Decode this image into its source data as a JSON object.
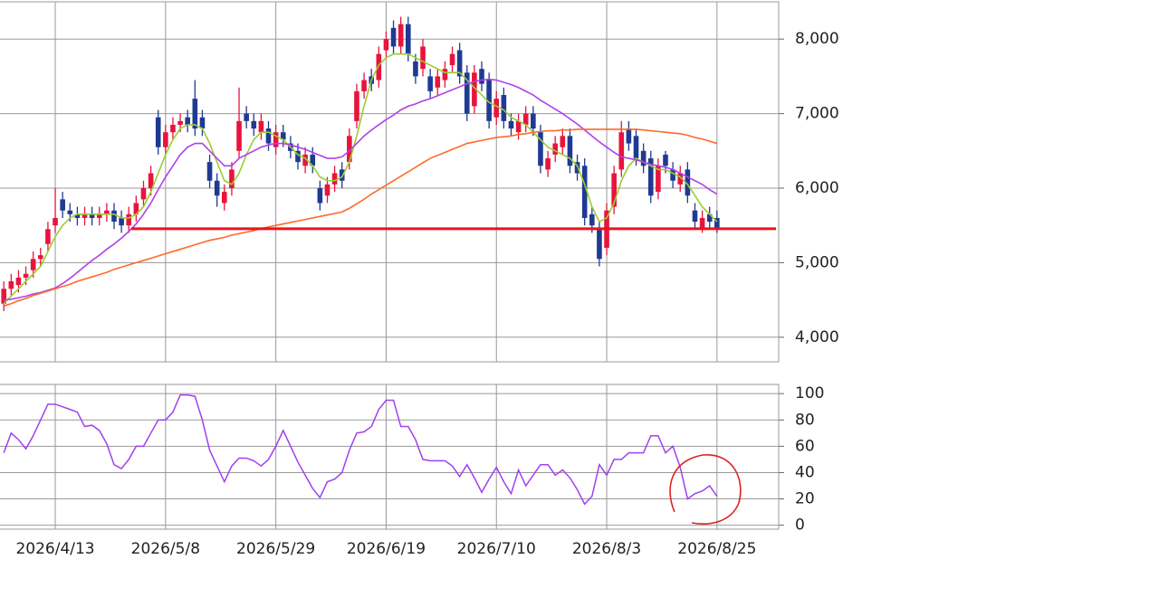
{
  "chart_data": [
    {
      "type": "candlestick",
      "ylim": [
        3670,
        8500
      ],
      "yticks": [
        {
          "value": 4000,
          "label": "4,000"
        },
        {
          "value": 5000,
          "label": "5,000"
        },
        {
          "value": 6000,
          "label": "6,000"
        },
        {
          "value": 7000,
          "label": "7,000"
        },
        {
          "value": 8000,
          "label": "8,000"
        }
      ],
      "grid": true,
      "up_color": "#e8143c",
      "down_color": "#1f3a93",
      "open": [
        4450,
        4650,
        4700,
        4800,
        4900,
        5050,
        5250,
        5500,
        5850,
        5700,
        5650,
        5600,
        5650,
        5600,
        5650,
        5700,
        5600,
        5500,
        5650,
        5850,
        6000,
        6950,
        6550,
        6750,
        6850,
        6950,
        7200,
        6950,
        6350,
        6100,
        5800,
        6000,
        6500,
        7000,
        6900,
        6750,
        6800,
        6550,
        6750,
        6600,
        6500,
        6300,
        6450,
        6000,
        5900,
        6050,
        6250,
        6350,
        6900,
        7300,
        7500,
        7450,
        7850,
        8150,
        7900,
        8200,
        7700,
        7600,
        7500,
        7350,
        7450,
        7650,
        7850,
        7550,
        7100,
        7600,
        7450,
        6950,
        7250,
        6900,
        6750,
        6850,
        7000,
        6750,
        6250,
        6450,
        6550,
        6700,
        6350,
        6300,
        5650,
        5450,
        5200,
        5750,
        6250,
        6800,
        6700,
        6500,
        6400,
        5950,
        6450,
        6250,
        6050,
        6250,
        5700,
        5450,
        5650,
        5600
      ],
      "high": [
        4750,
        4850,
        4900,
        4950,
        5150,
        5200,
        5550,
        6000,
        5950,
        5800,
        5750,
        5750,
        5750,
        5750,
        5800,
        5800,
        5700,
        5750,
        5900,
        6100,
        6300,
        7050,
        6850,
        6950,
        7000,
        7050,
        7450,
        7050,
        6450,
        6200,
        6050,
        6350,
        7350,
        7100,
        7000,
        7000,
        6900,
        6850,
        6850,
        6700,
        6600,
        6550,
        6550,
        6100,
        6150,
        6300,
        6350,
        6800,
        7400,
        7550,
        7600,
        7900,
        8100,
        8250,
        8300,
        8300,
        7800,
        8000,
        7600,
        7600,
        7700,
        7900,
        7950,
        7650,
        7650,
        7700,
        7550,
        7300,
        7350,
        7000,
        7000,
        7100,
        7100,
        6850,
        6500,
        6700,
        6800,
        6800,
        6450,
        6400,
        5750,
        5550,
        5800,
        6300,
        6900,
        6900,
        6800,
        6600,
        6500,
        6400,
        6500,
        6350,
        6300,
        6350,
        5800,
        5700,
        5750,
        5700
      ],
      "low": [
        4350,
        4550,
        4600,
        4700,
        4800,
        4950,
        5150,
        5400,
        5600,
        5550,
        5500,
        5500,
        5500,
        5500,
        5550,
        5450,
        5400,
        5400,
        5550,
        5750,
        5900,
        6450,
        6450,
        6650,
        6750,
        6750,
        6700,
        6700,
        6000,
        5750,
        5700,
        5900,
        6400,
        6800,
        6700,
        6650,
        6500,
        6450,
        6550,
        6400,
        6250,
        6200,
        6200,
        5700,
        5800,
        5950,
        6000,
        6250,
        6800,
        7200,
        7300,
        7350,
        7750,
        7800,
        7800,
        7700,
        7400,
        7500,
        7200,
        7250,
        7350,
        7550,
        7400,
        6900,
        7000,
        7300,
        6800,
        6850,
        6800,
        6700,
        6650,
        6750,
        6700,
        6200,
        6150,
        6350,
        6450,
        6200,
        6100,
        5500,
        5400,
        4950,
        5100,
        5650,
        6150,
        6500,
        6300,
        6200,
        5800,
        5850,
        6200,
        6000,
        5950,
        5800,
        5450,
        5400,
        5450,
        5400
      ],
      "close": [
        4650,
        4750,
        4800,
        4850,
        5050,
        5100,
        5450,
        5600,
        5700,
        5650,
        5600,
        5650,
        5600,
        5650,
        5700,
        5550,
        5500,
        5650,
        5800,
        6000,
        6200,
        6550,
        6750,
        6850,
        6900,
        6850,
        6800,
        6800,
        6100,
        5900,
        5950,
        6250,
        6900,
        6900,
        6800,
        6900,
        6600,
        6750,
        6650,
        6500,
        6350,
        6450,
        6300,
        5800,
        6050,
        6200,
        6100,
        6700,
        7300,
        7450,
        7400,
        7800,
        8000,
        7900,
        8200,
        7800,
        7500,
        7900,
        7300,
        7500,
        7600,
        7800,
        7500,
        7000,
        7550,
        7400,
        6900,
        7200,
        6900,
        6800,
        6900,
        7000,
        6800,
        6300,
        6400,
        6600,
        6700,
        6300,
        6200,
        5600,
        5500,
        5050,
        5700,
        6200,
        6750,
        6600,
        6400,
        6300,
        5900,
        6300,
        6300,
        6100,
        6200,
        5900,
        5550,
        5600,
        5550,
        5450
      ],
      "series": [
        {
          "color": "#9acd32",
          "values": [
            4450,
            4550,
            4650,
            4750,
            4850,
            4950,
            5150,
            5350,
            5500,
            5600,
            5650,
            5650,
            5650,
            5650,
            5650,
            5650,
            5600,
            5600,
            5650,
            5750,
            5950,
            6200,
            6450,
            6650,
            6800,
            6850,
            6850,
            6800,
            6600,
            6350,
            6100,
            6050,
            6200,
            6450,
            6650,
            6750,
            6750,
            6700,
            6650,
            6550,
            6450,
            6400,
            6300,
            6150,
            6100,
            6100,
            6150,
            6350,
            6700,
            7100,
            7450,
            7650,
            7750,
            7800,
            7800,
            7800,
            7750,
            7700,
            7650,
            7600,
            7550,
            7550,
            7550,
            7450,
            7350,
            7250,
            7150,
            7100,
            7050,
            6950,
            6900,
            6850,
            6750,
            6650,
            6550,
            6500,
            6450,
            6400,
            6300,
            6050,
            5750,
            5550,
            5600,
            5800,
            6100,
            6300,
            6400,
            6350,
            6300,
            6250,
            6250,
            6200,
            6150,
            6050,
            5900,
            5750,
            5650,
            5550
          ]
        },
        {
          "color": "#b040e8",
          "values": [
            4500,
            4510,
            4530,
            4550,
            4580,
            4600,
            4630,
            4660,
            4720,
            4790,
            4870,
            4950,
            5030,
            5100,
            5180,
            5250,
            5330,
            5420,
            5520,
            5650,
            5800,
            5980,
            6150,
            6300,
            6450,
            6550,
            6600,
            6600,
            6500,
            6400,
            6300,
            6300,
            6400,
            6450,
            6500,
            6550,
            6580,
            6600,
            6600,
            6580,
            6550,
            6520,
            6480,
            6440,
            6400,
            6400,
            6420,
            6500,
            6600,
            6700,
            6780,
            6850,
            6920,
            6980,
            7050,
            7100,
            7130,
            7170,
            7200,
            7240,
            7280,
            7320,
            7360,
            7400,
            7430,
            7450,
            7460,
            7450,
            7420,
            7390,
            7350,
            7300,
            7250,
            7180,
            7120,
            7060,
            7000,
            6930,
            6860,
            6780,
            6700,
            6620,
            6550,
            6480,
            6420,
            6400,
            6380,
            6350,
            6320,
            6300,
            6280,
            6250,
            6200,
            6150,
            6100,
            6050,
            5980,
            5920
          ]
        },
        {
          "color": "#ff6a2a",
          "values": [
            4420,
            4450,
            4490,
            4520,
            4560,
            4590,
            4620,
            4650,
            4680,
            4710,
            4750,
            4780,
            4810,
            4840,
            4870,
            4910,
            4940,
            4970,
            5000,
            5030,
            5060,
            5090,
            5120,
            5150,
            5180,
            5210,
            5240,
            5270,
            5300,
            5320,
            5340,
            5370,
            5390,
            5410,
            5430,
            5460,
            5480,
            5500,
            5520,
            5540,
            5560,
            5580,
            5600,
            5620,
            5640,
            5660,
            5680,
            5730,
            5790,
            5850,
            5920,
            5980,
            6040,
            6100,
            6160,
            6220,
            6280,
            6340,
            6400,
            6440,
            6480,
            6520,
            6560,
            6600,
            6620,
            6640,
            6660,
            6680,
            6690,
            6700,
            6720,
            6730,
            6750,
            6760,
            6770,
            6770,
            6780,
            6780,
            6790,
            6790,
            6790,
            6790,
            6790,
            6790,
            6790,
            6790,
            6790,
            6780,
            6770,
            6760,
            6750,
            6740,
            6730,
            6710,
            6680,
            6660,
            6630,
            6600
          ]
        }
      ],
      "hline": {
        "value": 5455,
        "color": "#e8141e"
      }
    },
    {
      "type": "line",
      "ylim": [
        -3,
        107
      ],
      "yticks": [
        0,
        20,
        40,
        60,
        80,
        100
      ],
      "grid": true,
      "color": "#a040f0",
      "categories": [
        null,
        null,
        null,
        null,
        null,
        null,
        null,
        "2026/4/13",
        null,
        null,
        null,
        null,
        null,
        null,
        null,
        null,
        null,
        null,
        null,
        null,
        null,
        null,
        "2026/5/8",
        null,
        null,
        null,
        null,
        null,
        null,
        null,
        null,
        null,
        null,
        null,
        null,
        null,
        null,
        "2026/5/29",
        null,
        null,
        null,
        null,
        null,
        null,
        null,
        null,
        null,
        null,
        null,
        null,
        null,
        null,
        "2026/6/19",
        null,
        null,
        null,
        null,
        null,
        null,
        null,
        null,
        null,
        null,
        null,
        null,
        null,
        null,
        "2026/7/10",
        null,
        null,
        null,
        null,
        null,
        null,
        null,
        null,
        null,
        null,
        null,
        null,
        null,
        null,
        "2026/8/3",
        null,
        null,
        null,
        null,
        null,
        null,
        null,
        null,
        null,
        null,
        null,
        null,
        null,
        null,
        "2026/8/25"
      ],
      "values": [
        55,
        70,
        65,
        58,
        68,
        80,
        92,
        92,
        90,
        88,
        86,
        75,
        76,
        72,
        62,
        46,
        43,
        50,
        60,
        60,
        70,
        80,
        80,
        86,
        99,
        99,
        98,
        80,
        57,
        45,
        33,
        45,
        51,
        51,
        49,
        45,
        50,
        60,
        72,
        60,
        48,
        38,
        28,
        21,
        33,
        35,
        40,
        57,
        70,
        71,
        75,
        88,
        95,
        95,
        75,
        75,
        65,
        50,
        49,
        49,
        49,
        45,
        37,
        46,
        36,
        25,
        35,
        44,
        33,
        24,
        42,
        30,
        38,
        46,
        46,
        38,
        42,
        36,
        27,
        16,
        22,
        46,
        38,
        50,
        50,
        55,
        55,
        55,
        68,
        68,
        55,
        60,
        44,
        20,
        24,
        26,
        30,
        22
      ]
    }
  ]
}
